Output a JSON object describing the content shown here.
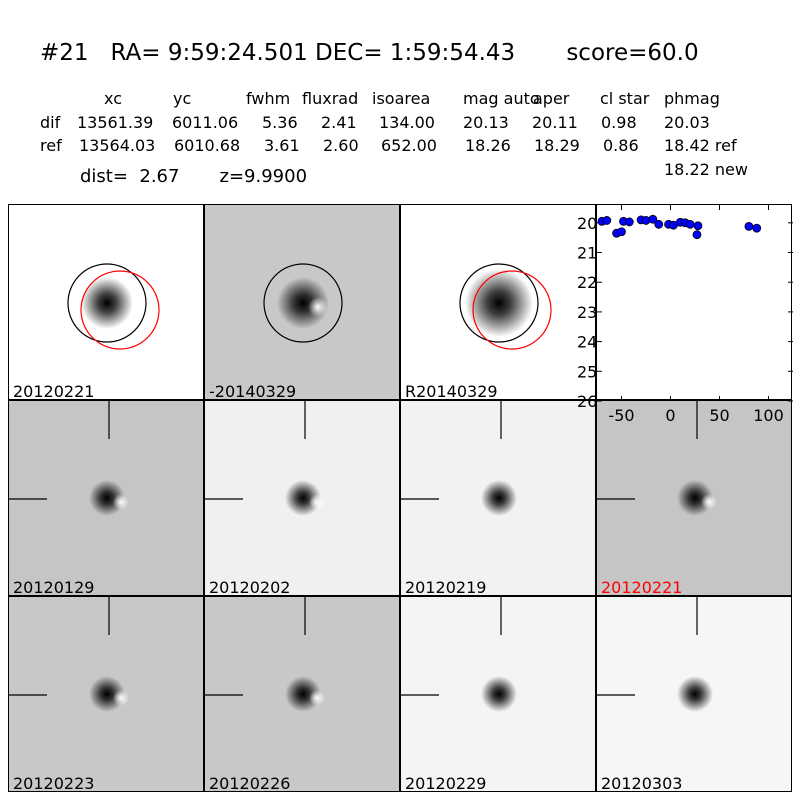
{
  "header": {
    "title": "#21   RA= 9:59:24.501 DEC= 1:59:54.43       score=60.0",
    "dist_line": "dist=  2.67       z=9.9900",
    "new_mag": "18.22 new"
  },
  "table": {
    "columns": [
      "xc",
      "yc",
      "fwhm",
      "fluxrad",
      "isoarea",
      "mag auto",
      "aper",
      "cl star",
      "phmag"
    ],
    "rows": [
      {
        "name": "dif",
        "values": [
          "13561.39",
          "6011.06",
          "5.36",
          "2.41",
          "134.00",
          "20.13",
          "20.11",
          "0.98",
          "20.03"
        ]
      },
      {
        "name": "ref",
        "values": [
          "13564.03",
          "6010.68",
          "3.61",
          "2.60",
          "652.00",
          "18.26",
          "18.29",
          "0.86",
          "18.42 ref"
        ]
      }
    ]
  },
  "colors": {
    "highlight_label": "#ff0000",
    "circle_ref": "#ff0000",
    "circle_main": "#000000",
    "points": "#0000ff"
  },
  "top_panels": [
    {
      "label": "20120221",
      "bg": "#ffffff",
      "circles": "both"
    },
    {
      "label": "-20140329",
      "bg": "#c8c8c8",
      "circles": "black"
    },
    {
      "label": "R20140329",
      "bg": "#ffffff",
      "circles": "both"
    }
  ],
  "stamp_panels": [
    {
      "label": "20120129",
      "bg": "#c5c5c5",
      "highlight": false
    },
    {
      "label": "20120202",
      "bg": "#f0f0f0",
      "highlight": false
    },
    {
      "label": "20120219",
      "bg": "#f2f2f2",
      "highlight": false
    },
    {
      "label": "20120221",
      "bg": "#c5c5c5",
      "highlight": true
    },
    {
      "label": "20120223",
      "bg": "#c8c8c8",
      "highlight": false
    },
    {
      "label": "20120226",
      "bg": "#c8c8c8",
      "highlight": false
    },
    {
      "label": "20120229",
      "bg": "#f4f4f4",
      "highlight": false
    },
    {
      "label": "20120303",
      "bg": "#f6f6f6",
      "highlight": false
    }
  ],
  "chart_data": {
    "type": "scatter",
    "xlim": [
      -75,
      125
    ],
    "ylim": [
      26,
      19.4
    ],
    "xticks": [
      -50,
      0,
      50,
      100
    ],
    "yticks": [
      20,
      21,
      22,
      23,
      24,
      25,
      26
    ],
    "points": [
      [
        -70,
        19.95
      ],
      [
        -65,
        19.92
      ],
      [
        -55,
        20.35
      ],
      [
        -50,
        20.3
      ],
      [
        -48,
        19.95
      ],
      [
        -42,
        19.97
      ],
      [
        -30,
        19.9
      ],
      [
        -25,
        19.92
      ],
      [
        -18,
        19.88
      ],
      [
        -12,
        20.05
      ],
      [
        -2,
        20.05
      ],
      [
        3,
        20.08
      ],
      [
        10,
        19.98
      ],
      [
        15,
        20.0
      ],
      [
        20,
        20.05
      ],
      [
        28,
        20.1
      ],
      [
        27,
        20.4
      ],
      [
        80,
        20.12
      ],
      [
        88,
        20.18
      ]
    ]
  }
}
